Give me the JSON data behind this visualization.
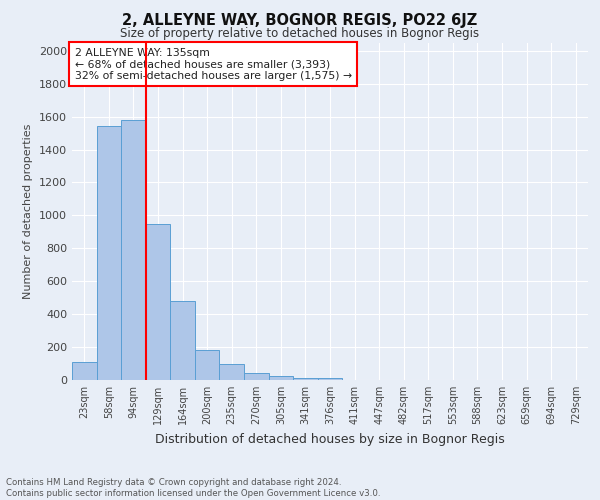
{
  "title": "2, ALLEYNE WAY, BOGNOR REGIS, PO22 6JZ",
  "subtitle": "Size of property relative to detached houses in Bognor Regis",
  "xlabel": "Distribution of detached houses by size in Bognor Regis",
  "ylabel": "Number of detached properties",
  "footnote1": "Contains HM Land Registry data © Crown copyright and database right 2024.",
  "footnote2": "Contains public sector information licensed under the Open Government Licence v3.0.",
  "annotation_line1": "2 ALLEYNE WAY: 135sqm",
  "annotation_line2": "← 68% of detached houses are smaller (3,393)",
  "annotation_line3": "32% of semi-detached houses are larger (1,575) →",
  "bar_labels": [
    "23sqm",
    "58sqm",
    "94sqm",
    "129sqm",
    "164sqm",
    "200sqm",
    "235sqm",
    "270sqm",
    "305sqm",
    "341sqm",
    "376sqm",
    "411sqm",
    "447sqm",
    "482sqm",
    "517sqm",
    "553sqm",
    "588sqm",
    "623sqm",
    "659sqm",
    "694sqm",
    "729sqm"
  ],
  "bar_values": [
    110,
    1540,
    1580,
    950,
    480,
    180,
    100,
    40,
    25,
    15,
    15,
    0,
    0,
    0,
    0,
    0,
    0,
    0,
    0,
    0,
    0
  ],
  "bar_color": "#aec6e8",
  "bar_edge_color": "#5a9fd4",
  "vline_color": "red",
  "ylim": [
    0,
    2050
  ],
  "yticks": [
    0,
    200,
    400,
    600,
    800,
    1000,
    1200,
    1400,
    1600,
    1800,
    2000
  ],
  "bg_color": "#e8eef7",
  "grid_color": "white",
  "annotation_box_color": "white",
  "annotation_box_edge_color": "red"
}
